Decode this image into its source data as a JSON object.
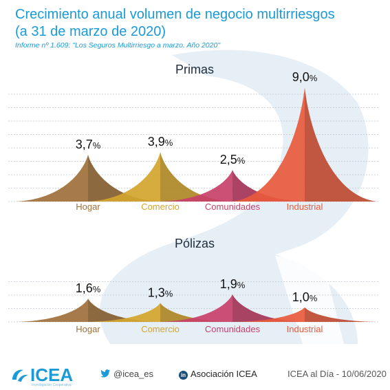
{
  "title_line1": "Crecimiento anual volumen de negocio multirriesgos",
  "title_line2": "(a 31 de marzo de 2020)",
  "subtitle": "Informe nº 1.609: \"Los Seguros Multirriesgo a marzo. Año 2020\"",
  "colors": {
    "title": "#1a9ad6",
    "Hogar": "#a0703a",
    "Comercio": "#d4a52e",
    "Comunidades": "#c8406a",
    "Industrial": "#e85a3c",
    "watermark": "#e6eef6"
  },
  "chart_data": [
    {
      "type": "area",
      "title": "Primas",
      "categories": [
        "Hogar",
        "Comercio",
        "Comunidades",
        "Industrial"
      ],
      "values": [
        3.7,
        3.9,
        2.5,
        9.0
      ],
      "data_labels": [
        "3,7%",
        "3,9%",
        "2,5%",
        "9,0%"
      ],
      "unit": "%",
      "ylim": [
        0,
        9.5
      ],
      "grid": true
    },
    {
      "type": "area",
      "title": "Pólizas",
      "categories": [
        "Hogar",
        "Comercio",
        "Comunidades",
        "Industrial"
      ],
      "values": [
        1.6,
        1.3,
        1.9,
        1.0
      ],
      "data_labels": [
        "1,6%",
        "1,3%",
        "1,9%",
        "1,0%"
      ],
      "unit": "%",
      "ylim": [
        0,
        3.6
      ],
      "grid": true
    }
  ],
  "footer": {
    "logo": "ICEA",
    "logo_tagline": "Investigación Cooperativa",
    "twitter": "@icea_es",
    "twitter_icon": "twitter-bird-icon",
    "linkedin_icon_letter": "in",
    "linkedin": "Asociación ICEA",
    "date": "ICEA al Día - 10/06/2020"
  }
}
